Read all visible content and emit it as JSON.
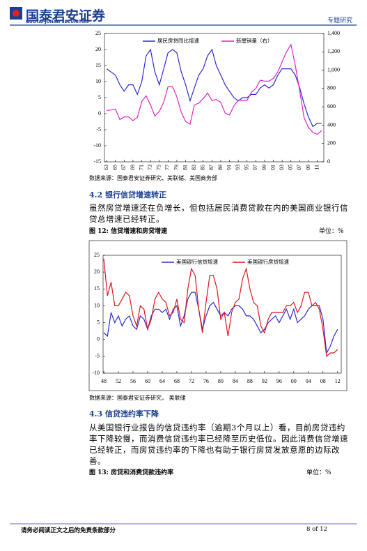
{
  "header": {
    "logo_cn": "国泰君安证券",
    "logo_en": "GUOTAI JUNAN SECURITIES",
    "tag": "专题研究"
  },
  "chart_data": [
    {
      "type": "line",
      "x": [
        1963,
        1964,
        1965,
        1966,
        1967,
        1968,
        1969,
        1970,
        1971,
        1972,
        1973,
        1974,
        1975,
        1976,
        1977,
        1978,
        1979,
        1980,
        1981,
        1982,
        1983,
        1984,
        1985,
        1986,
        1987,
        1988,
        1989,
        1990,
        1991,
        1992,
        1993,
        1994,
        1995,
        1996,
        1997,
        1998,
        1999,
        2000,
        2001,
        2002,
        2003,
        2004,
        2005,
        2006,
        2007,
        2008,
        2009,
        2010,
        2011,
        2012
      ],
      "xlim": [
        1962.5,
        2012.5
      ],
      "xticks": [
        {
          "value": 1963,
          "label": "63"
        },
        {
          "value": 1965,
          "label": "65"
        },
        {
          "value": 1967,
          "label": "67"
        },
        {
          "value": 1969,
          "label": "69"
        },
        {
          "value": 1971,
          "label": "71"
        },
        {
          "value": 1973,
          "label": "73"
        },
        {
          "value": 1975,
          "label": "75"
        },
        {
          "value": 1977,
          "label": "77"
        },
        {
          "value": 1979,
          "label": "79"
        },
        {
          "value": 1981,
          "label": "81"
        },
        {
          "value": 1983,
          "label": "83"
        },
        {
          "value": 1985,
          "label": "85"
        },
        {
          "value": 1987,
          "label": "87"
        },
        {
          "value": 1989,
          "label": "89"
        },
        {
          "value": 1991,
          "label": "91"
        },
        {
          "value": 1993,
          "label": "93"
        },
        {
          "value": 1995,
          "label": "95"
        },
        {
          "value": 1997,
          "label": "97"
        },
        {
          "value": 1999,
          "label": "99"
        },
        {
          "value": 2001,
          "label": "01"
        },
        {
          "value": 2003,
          "label": "03"
        },
        {
          "value": 2005,
          "label": "05"
        },
        {
          "value": 2007,
          "label": "07"
        },
        {
          "value": 2009,
          "label": "09"
        },
        {
          "value": 2011,
          "label": "11"
        }
      ],
      "ylim": [
        -15,
        25
      ],
      "yticks": [
        -15,
        -10,
        -5,
        0,
        5,
        10,
        15,
        20,
        25
      ],
      "y2lim": [
        0,
        1400
      ],
      "y2ticks": [
        0,
        200,
        400,
        600,
        800,
        {
          "value": 1000,
          "label": "1,000"
        },
        {
          "value": 1200,
          "label": "1,200"
        },
        {
          "value": 1400,
          "label": "1,400"
        }
      ],
      "legend": "upper center",
      "series": [
        {
          "name": "居民房贷同比增速",
          "color": "#2b2bd6",
          "values": [
            14,
            13,
            12,
            9,
            7,
            9,
            9,
            6,
            10,
            18,
            20,
            13,
            9,
            14,
            19,
            20,
            19,
            13,
            9,
            4,
            8,
            12,
            14,
            18,
            20,
            15,
            12,
            9,
            7,
            5,
            4,
            5,
            5,
            6,
            6,
            8,
            9,
            8,
            9,
            12,
            14,
            14,
            14,
            12,
            8,
            3,
            -1,
            -4,
            -3,
            -3
          ]
        },
        {
          "name": "新屋销量（右）",
          "color": "#e020c8",
          "axis": "y2",
          "values": [
            560,
            565,
            575,
            460,
            490,
            490,
            450,
            485,
            660,
            720,
            620,
            500,
            550,
            650,
            820,
            820,
            710,
            540,
            440,
            410,
            620,
            640,
            690,
            750,
            670,
            680,
            650,
            530,
            510,
            610,
            670,
            670,
            670,
            760,
            800,
            890,
            880,
            880,
            910,
            980,
            1090,
            1200,
            1280,
            1050,
            770,
            480,
            375,
            320,
            300,
            340
          ]
        }
      ],
      "source": "数据来源：国泰君安证券研究、美联储、美国商务部"
    },
    {
      "type": "line",
      "caption": "图 12: 信贷增速和房贷增速",
      "unit": "单位：%",
      "x": [
        1948,
        1949,
        1950,
        1951,
        1952,
        1953,
        1954,
        1955,
        1956,
        1957,
        1958,
        1959,
        1960,
        1961,
        1962,
        1963,
        1964,
        1965,
        1966,
        1967,
        1968,
        1969,
        1970,
        1971,
        1972,
        1973,
        1974,
        1975,
        1976,
        1977,
        1978,
        1979,
        1980,
        1981,
        1982,
        1983,
        1984,
        1985,
        1986,
        1987,
        1988,
        1989,
        1990,
        1991,
        1992,
        1993,
        1994,
        1995,
        1996,
        1997,
        1998,
        1999,
        2000,
        2001,
        2002,
        2003,
        2004,
        2005,
        2006,
        2007,
        2008,
        2009,
        2010,
        2011,
        2012
      ],
      "xlim": [
        1947.8,
        2013
      ],
      "xticks": [
        {
          "value": 1948,
          "label": "48"
        },
        {
          "value": 1952,
          "label": "52"
        },
        {
          "value": 1956,
          "label": "56"
        },
        {
          "value": 1960,
          "label": "60"
        },
        {
          "value": 1964,
          "label": "64"
        },
        {
          "value": 1968,
          "label": "68"
        },
        {
          "value": 1972,
          "label": "72"
        },
        {
          "value": 1976,
          "label": "76"
        },
        {
          "value": 1980,
          "label": "80"
        },
        {
          "value": 1984,
          "label": "84"
        },
        {
          "value": 1988,
          "label": "88"
        },
        {
          "value": 1992,
          "label": "92"
        },
        {
          "value": 1996,
          "label": "96"
        },
        {
          "value": 2000,
          "label": "00"
        },
        {
          "value": 2004,
          "label": "04"
        },
        {
          "value": 2008,
          "label": "08"
        },
        {
          "value": 2012,
          "label": "12"
        }
      ],
      "ylim": [
        -10,
        25
      ],
      "yticks": [
        -10,
        -5,
        0,
        5,
        10,
        15,
        20,
        25
      ],
      "legend": "upper center",
      "series": [
        {
          "name": "美国银行信贷增速",
          "color": "#2b2bd6",
          "values": [
            2,
            1,
            8,
            5,
            7,
            4,
            6,
            7,
            4,
            3,
            7,
            6,
            3,
            7,
            9,
            9,
            8,
            9,
            6,
            9,
            10,
            4,
            7,
            12,
            14,
            14,
            9,
            3,
            7,
            10,
            11,
            9,
            7,
            8,
            7,
            9,
            10,
            10,
            9,
            7,
            7,
            6,
            4,
            2,
            3,
            5,
            6,
            7,
            5,
            7,
            9,
            6,
            9,
            5,
            6,
            7,
            9,
            10,
            10,
            10,
            6,
            -4,
            -2,
            1,
            3
          ]
        },
        {
          "name": "美国银行房贷增速",
          "color": "#e0141e",
          "values": [
            24,
            13,
            17,
            10,
            10,
            12,
            14,
            13,
            7,
            4,
            10,
            9,
            3,
            6,
            12,
            14,
            12,
            11,
            7,
            8,
            12,
            6,
            5,
            15,
            21,
            19,
            9,
            2,
            11,
            19,
            19,
            15,
            6,
            8,
            1,
            8,
            11,
            12,
            18,
            21,
            15,
            11,
            10,
            4,
            2,
            6,
            8,
            8,
            8,
            8,
            10,
            10,
            11,
            8,
            10,
            14,
            14,
            10,
            11,
            9,
            3,
            -5,
            -4,
            -4,
            -3
          ]
        }
      ],
      "source": "数据来源：国泰君安证券研究， 美联储"
    }
  ],
  "sections": [
    {
      "heading": "4.2 银行信贷增速转正",
      "paragraph": "虽然房贷增速还在负增长，但包括居民消费贷款在内的美国商业银行信贷总增速已经转正。"
    },
    {
      "heading": "4.3 信贷违约率下降",
      "paragraph": "从美国银行业报告的信贷违约率（逾期3个月以上）看，目前房贷违约率下降较慢，而消费信贷违约率已经降至历史低位。因此消费信贷增速已经转正，而房贷违约率的下降也有助于银行房贷发放意愿的边际改善。",
      "caption": "图 13: 房贷和消费贷款违约率",
      "unit": "单位：%"
    }
  ],
  "footer": {
    "disclaimer": "请务必阅读正文之后的免责条款部分",
    "page": "8 of 12"
  }
}
